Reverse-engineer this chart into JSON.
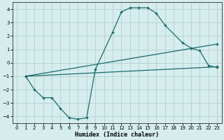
{
  "xlabel": "Humidex (Indice chaleur)",
  "xlim": [
    -0.5,
    23.5
  ],
  "ylim": [
    -4.5,
    4.5
  ],
  "yticks": [
    -4,
    -3,
    -2,
    -1,
    0,
    1,
    2,
    3,
    4
  ],
  "xticks": [
    0,
    1,
    2,
    3,
    4,
    5,
    6,
    7,
    8,
    9,
    10,
    11,
    12,
    13,
    14,
    15,
    16,
    17,
    18,
    19,
    20,
    21,
    22,
    23
  ],
  "background_color": "#d6eded",
  "grid_color": "#b5d4d4",
  "line_color": "#1a6b6b",
  "line1_x": [
    1,
    2,
    3,
    4,
    5,
    6,
    7,
    8,
    9,
    11,
    12,
    13,
    14,
    15,
    16,
    17,
    19,
    20,
    21,
    22,
    23
  ],
  "line1_y": [
    -1.0,
    -2.0,
    -2.6,
    -2.6,
    -3.4,
    -4.1,
    -4.2,
    -4.1,
    -0.5,
    2.3,
    3.8,
    4.1,
    4.1,
    4.1,
    3.7,
    2.8,
    1.5,
    1.1,
    0.9,
    -0.2,
    -0.35
  ],
  "line2_x": [
    1,
    23
  ],
  "line2_y": [
    -1.0,
    1.4
  ],
  "line3_x": [
    1,
    23
  ],
  "line3_y": [
    -1.0,
    -0.3
  ]
}
